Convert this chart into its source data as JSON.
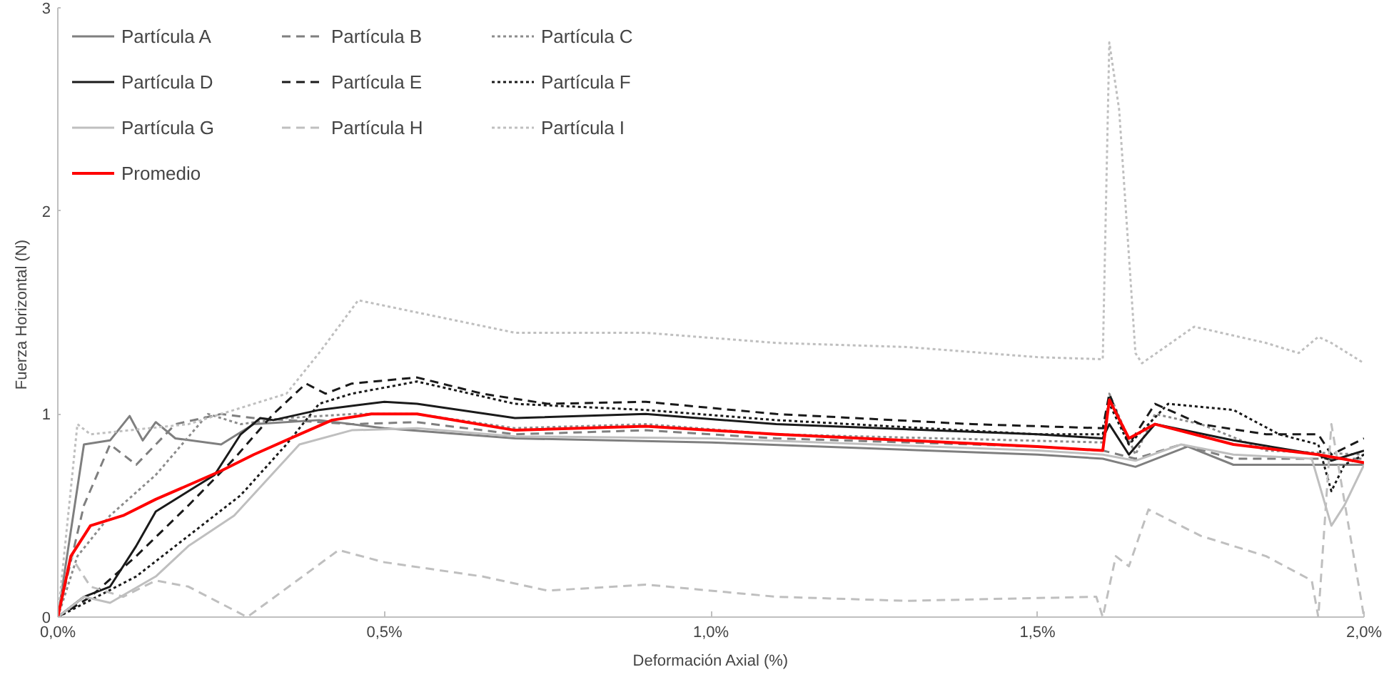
{
  "chart_data": {
    "type": "line",
    "xlabel": "Deformación Axial (%)",
    "ylabel": "Fuerza  Horizontal (N)",
    "xlim": [
      0,
      2.0
    ],
    "xticks": [
      {
        "value": 0,
        "label": "0,0%"
      },
      {
        "value": 0.5,
        "label": "0,5%"
      },
      {
        "value": 1.0,
        "label": "1,0%"
      },
      {
        "value": 1.5,
        "label": "1,5%"
      },
      {
        "value": 2.0,
        "label": "2,0%"
      }
    ],
    "ylim": [
      0,
      3
    ],
    "yticks": [
      0,
      1,
      2,
      3
    ],
    "grid": false,
    "legend": "top left",
    "marker": "none",
    "series": [
      {
        "name": "Partícula A",
        "color": "#7f7f7f",
        "line_style": "solid",
        "x": [
          0,
          0.04,
          0.08,
          0.11,
          0.13,
          0.15,
          0.18,
          0.25,
          0.3,
          0.4,
          0.5,
          0.7,
          1.0,
          1.5,
          1.6,
          1.65,
          1.73,
          1.8,
          2.0
        ],
        "values": [
          0,
          0.85,
          0.87,
          0.99,
          0.87,
          0.96,
          0.88,
          0.85,
          0.95,
          0.97,
          0.93,
          0.88,
          0.86,
          0.8,
          0.78,
          0.74,
          0.84,
          0.75,
          0.75
        ]
      },
      {
        "name": "Partícula B",
        "color": "#7f7f7f",
        "line_style": "dashed",
        "x": [
          0,
          0.04,
          0.08,
          0.12,
          0.18,
          0.25,
          0.3,
          0.45,
          0.55,
          0.7,
          0.9,
          1.1,
          1.5,
          1.6,
          1.65,
          1.72,
          1.8,
          2.0
        ],
        "values": [
          0,
          0.55,
          0.85,
          0.75,
          0.95,
          1.0,
          0.98,
          0.95,
          0.96,
          0.9,
          0.92,
          0.88,
          0.84,
          0.82,
          0.78,
          0.85,
          0.78,
          0.78
        ]
      },
      {
        "name": "Partícula C",
        "color": "#8c8c8c",
        "line_style": "dotted",
        "x": [
          0,
          0.03,
          0.08,
          0.15,
          0.23,
          0.28,
          0.35,
          0.45,
          0.55,
          0.7,
          0.9,
          1.1,
          1.6,
          1.61,
          1.65,
          1.68,
          1.75,
          1.85,
          2.0
        ],
        "values": [
          0,
          0.3,
          0.5,
          0.7,
          1.0,
          0.95,
          0.98,
          1.0,
          1.0,
          0.93,
          0.95,
          0.9,
          0.86,
          1.1,
          0.8,
          1.0,
          0.95,
          0.82,
          0.8
        ]
      },
      {
        "name": "Partícula D",
        "color": "#1a1a1a",
        "line_style": "solid",
        "x": [
          0,
          0.04,
          0.08,
          0.12,
          0.15,
          0.2,
          0.24,
          0.28,
          0.31,
          0.33,
          0.4,
          0.5,
          0.55,
          0.7,
          0.9,
          1.1,
          1.5,
          1.6,
          1.61,
          1.64,
          1.68,
          1.8,
          1.93,
          1.95,
          2.0
        ],
        "values": [
          0,
          0.1,
          0.15,
          0.35,
          0.52,
          0.62,
          0.7,
          0.9,
          0.98,
          0.97,
          1.02,
          1.06,
          1.05,
          0.98,
          1.0,
          0.95,
          0.9,
          0.88,
          0.95,
          0.8,
          0.95,
          0.87,
          0.8,
          0.77,
          0.82
        ]
      },
      {
        "name": "Partícula E",
        "color": "#1a1a1a",
        "line_style": "dashed",
        "x": [
          0,
          0.05,
          0.12,
          0.2,
          0.27,
          0.33,
          0.38,
          0.41,
          0.45,
          0.55,
          0.65,
          0.75,
          0.9,
          1.1,
          1.4,
          1.6,
          1.61,
          1.64,
          1.68,
          1.75,
          1.85,
          1.93,
          1.95,
          2.0
        ],
        "values": [
          0,
          0.1,
          0.3,
          0.55,
          0.78,
          1.0,
          1.15,
          1.1,
          1.15,
          1.18,
          1.1,
          1.05,
          1.06,
          1.0,
          0.95,
          0.93,
          1.1,
          0.85,
          1.05,
          0.95,
          0.9,
          0.9,
          0.8,
          0.88
        ]
      },
      {
        "name": "Partícula F",
        "color": "#1a1a1a",
        "line_style": "dotted",
        "x": [
          0,
          0.06,
          0.12,
          0.2,
          0.28,
          0.35,
          0.4,
          0.45,
          0.55,
          0.7,
          0.9,
          1.1,
          1.5,
          1.6,
          1.61,
          1.64,
          1.7,
          1.8,
          1.87,
          1.93,
          1.95,
          1.97,
          2.0
        ],
        "values": [
          0,
          0.1,
          0.2,
          0.4,
          0.6,
          0.85,
          1.05,
          1.1,
          1.16,
          1.05,
          1.02,
          0.97,
          0.9,
          0.9,
          1.05,
          0.85,
          1.05,
          1.02,
          0.9,
          0.85,
          0.62,
          0.75,
          0.8
        ]
      },
      {
        "name": "Partícula G",
        "color": "#bfbfbf",
        "line_style": "solid",
        "x": [
          0,
          0.04,
          0.08,
          0.15,
          0.2,
          0.27,
          0.37,
          0.45,
          0.55,
          0.7,
          1.0,
          1.5,
          1.6,
          1.65,
          1.72,
          1.8,
          1.92,
          1.95,
          1.97,
          2.0
        ],
        "values": [
          0,
          0.1,
          0.07,
          0.2,
          0.35,
          0.5,
          0.85,
          0.92,
          0.93,
          0.89,
          0.88,
          0.82,
          0.8,
          0.77,
          0.85,
          0.8,
          0.78,
          0.45,
          0.55,
          0.75
        ]
      },
      {
        "name": "Partícula H",
        "color": "#bfbfbf",
        "line_style": "dashed",
        "x": [
          0,
          0.02,
          0.05,
          0.1,
          0.15,
          0.2,
          0.29,
          0.43,
          0.5,
          0.65,
          0.75,
          0.9,
          1.1,
          1.3,
          1.59,
          1.6,
          1.62,
          1.64,
          1.67,
          1.75,
          1.85,
          1.92,
          1.93,
          1.95,
          2.0
        ],
        "values": [
          0,
          0.3,
          0.15,
          0.1,
          0.18,
          0.15,
          0.0,
          0.33,
          0.27,
          0.2,
          0.13,
          0.16,
          0.1,
          0.08,
          0.1,
          0.0,
          0.3,
          0.25,
          0.53,
          0.4,
          0.3,
          0.18,
          0.0,
          0.95,
          0.0
        ]
      },
      {
        "name": "Partícula I",
        "color": "#bfbfbf",
        "line_style": "dotted",
        "x": [
          0,
          0.03,
          0.05,
          0.2,
          0.25,
          0.35,
          0.4,
          0.46,
          0.55,
          0.7,
          0.9,
          1.1,
          1.3,
          1.5,
          1.6,
          1.61,
          1.625,
          1.65,
          1.66,
          1.74,
          1.85,
          1.9,
          1.93,
          1.95,
          2.0
        ],
        "values": [
          0,
          0.95,
          0.9,
          0.95,
          1.0,
          1.1,
          1.3,
          1.56,
          1.5,
          1.4,
          1.4,
          1.35,
          1.33,
          1.28,
          1.27,
          2.83,
          2.5,
          1.3,
          1.25,
          1.43,
          1.35,
          1.3,
          1.38,
          1.35,
          1.25
        ]
      },
      {
        "name": "Promedio",
        "color": "#ff0000",
        "line_style": "solid",
        "x": [
          0,
          0.02,
          0.05,
          0.1,
          0.15,
          0.2,
          0.25,
          0.3,
          0.37,
          0.42,
          0.48,
          0.55,
          0.7,
          0.9,
          1.1,
          1.5,
          1.6,
          1.61,
          1.64,
          1.68,
          1.8,
          1.93,
          2.0
        ],
        "values": [
          0,
          0.3,
          0.45,
          0.5,
          0.58,
          0.65,
          0.72,
          0.8,
          0.9,
          0.97,
          1.0,
          1.0,
          0.92,
          0.94,
          0.9,
          0.84,
          0.82,
          1.07,
          0.88,
          0.95,
          0.85,
          0.8,
          0.76
        ]
      }
    ]
  }
}
